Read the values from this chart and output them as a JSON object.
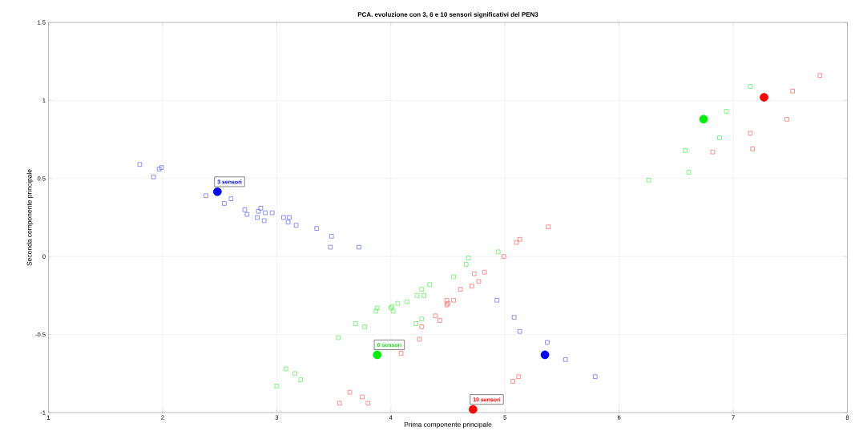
{
  "chart_data": {
    "type": "scatter",
    "title": "PCA. evoluzione con 3, 6 e 10 sensori significativi del PEN3",
    "xlabel": "Prima componente principale",
    "ylabel": "Seconda componente principale",
    "xlim": [
      1,
      8
    ],
    "ylim": [
      -1,
      1.5
    ],
    "xticks": [
      1,
      2,
      3,
      4,
      5,
      6,
      7,
      8
    ],
    "yticks": [
      -1,
      -0.5,
      0,
      0.5,
      1,
      1.5
    ],
    "grid": true,
    "series": [
      {
        "color": "#6060ff",
        "marker": "square",
        "x": [
          1.8,
          1.92,
          1.97,
          1.99,
          2.38,
          2.54,
          2.6,
          2.72,
          2.74,
          2.83,
          2.84,
          2.86,
          2.89,
          2.9,
          2.96,
          3.06,
          3.11,
          3.1,
          3.17,
          3.35,
          3.48,
          3.47,
          3.72,
          4.93,
          5.08,
          5.13,
          5.37,
          5.53,
          5.79
        ],
        "values": [
          0.59,
          0.51,
          0.56,
          0.57,
          0.39,
          0.34,
          0.37,
          0.3,
          0.27,
          0.25,
          0.29,
          0.31,
          0.23,
          0.28,
          0.28,
          0.25,
          0.25,
          0.22,
          0.2,
          0.18,
          0.13,
          0.06,
          0.06,
          -0.28,
          -0.39,
          -0.48,
          -0.55,
          -0.66,
          -0.77
        ]
      },
      {
        "color": "#50ef50",
        "marker": "square",
        "x": [
          3.0,
          3.08,
          3.16,
          3.21,
          3.54,
          3.69,
          3.77,
          3.87,
          3.88,
          4.0,
          4.01,
          4.02,
          4.06,
          4.14,
          4.22,
          4.23,
          4.27,
          4.27,
          4.29,
          4.34,
          4.55,
          4.66,
          4.68,
          4.94,
          6.26,
          6.58,
          6.61,
          6.88,
          6.94,
          7.15
        ],
        "values": [
          -0.83,
          -0.72,
          -0.75,
          -0.79,
          -0.52,
          -0.43,
          -0.45,
          -0.35,
          -0.33,
          -0.33,
          -0.32,
          -0.35,
          -0.3,
          -0.29,
          -0.43,
          -0.25,
          -0.4,
          -0.21,
          -0.25,
          -0.18,
          -0.13,
          -0.05,
          -0.01,
          0.03,
          0.49,
          0.68,
          0.54,
          0.76,
          0.93,
          1.09
        ]
      },
      {
        "color": "#ff6060",
        "marker": "square",
        "x": [
          3.55,
          3.64,
          3.75,
          3.8,
          4.09,
          4.25,
          4.27,
          4.39,
          4.43,
          4.49,
          4.5,
          4.49,
          4.55,
          4.61,
          4.71,
          4.77,
          4.73,
          4.82,
          4.99,
          5.07,
          5.12,
          5.1,
          5.13,
          5.38,
          6.82,
          7.15,
          7.17,
          7.47,
          7.52,
          7.76
        ],
        "values": [
          -0.94,
          -0.87,
          -0.9,
          -0.94,
          -0.62,
          -0.53,
          -0.45,
          -0.38,
          -0.41,
          -0.28,
          -0.3,
          -0.31,
          -0.28,
          -0.21,
          -0.19,
          -0.16,
          -0.11,
          -0.1,
          0.0,
          -0.8,
          -0.77,
          0.09,
          0.11,
          0.19,
          0.67,
          0.79,
          0.69,
          0.88,
          1.06,
          1.16
        ]
      },
      {
        "color": "#0000ff",
        "marker": "circle",
        "x": [
          2.48,
          5.35
        ],
        "values": [
          0.415,
          -0.63
        ]
      },
      {
        "color": "#00ee00",
        "marker": "circle",
        "x": [
          3.88,
          6.74
        ],
        "values": [
          -0.63,
          0.88
        ]
      },
      {
        "color": "#ff0000",
        "marker": "circle",
        "x": [
          4.72,
          7.27
        ],
        "values": [
          -0.98,
          1.02
        ]
      }
    ],
    "annotations": [
      {
        "text": "3 sensori",
        "x": 2.48,
        "y": 0.415
      },
      {
        "text": "6 sensori",
        "x": 3.88,
        "y": -0.63
      },
      {
        "text": "10 sensori",
        "x": 4.72,
        "y": -0.98
      }
    ]
  }
}
